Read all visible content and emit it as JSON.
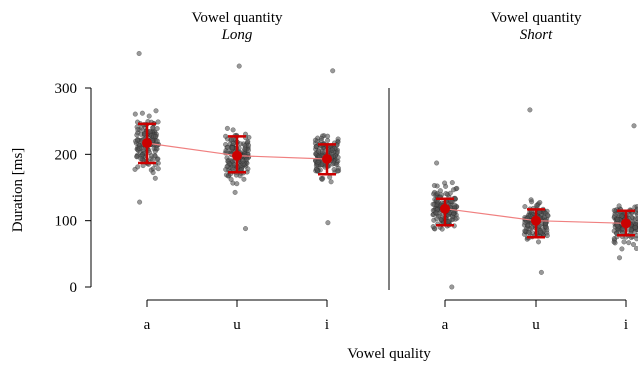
{
  "chart_data": {
    "type": "scatter",
    "xlabel": "Vowel quality",
    "ylabel": "Duration [ms]",
    "ylim": [
      0,
      360
    ],
    "yticks": [
      0,
      100,
      200,
      300
    ],
    "categories": [
      "a",
      "u",
      "i"
    ],
    "grid": false,
    "panels": [
      {
        "title_line1": "Vowel quantity",
        "title_line2": "Long",
        "groups": [
          {
            "category": "a",
            "mean": 217,
            "lower": 187,
            "upper": 246,
            "min": 128,
            "max": 352
          },
          {
            "category": "u",
            "mean": 198,
            "lower": 173,
            "upper": 227,
            "min": 88,
            "max": 333
          },
          {
            "category": "i",
            "mean": 193,
            "lower": 170,
            "upper": 215,
            "min": 97,
            "max": 326
          }
        ]
      },
      {
        "title_line1": "Vowel quantity",
        "title_line2": "Short",
        "groups": [
          {
            "category": "a",
            "mean": 118,
            "lower": 93,
            "upper": 133,
            "min": 0,
            "max": 187
          },
          {
            "category": "u",
            "mean": 100,
            "lower": 75,
            "upper": 117,
            "min": 22,
            "max": 267
          },
          {
            "category": "i",
            "mean": 96,
            "lower": 78,
            "upper": 115,
            "min": 44,
            "max": 243
          }
        ]
      }
    ]
  },
  "colors": {
    "point": "#555555",
    "summary": "#cc0000",
    "trend_line": "#f08080",
    "axis": "#000000"
  }
}
